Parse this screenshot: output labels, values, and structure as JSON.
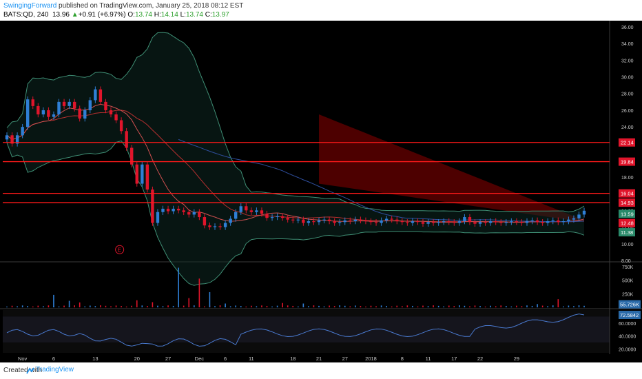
{
  "header": {
    "author": "SwingingForward",
    "published_text": " published on TradingView.com, January 25, 2018 08:12 EST",
    "symbol": "BATS:QD, 240",
    "last": "13.96",
    "change": "+0.91 (+6.97%)",
    "o_label": "O:",
    "o": "13.74",
    "h_label": "H:",
    "h": "14.14",
    "l_label": "L:",
    "l": "13.74",
    "c_label": "C:",
    "c": "13.97"
  },
  "footer": {
    "created": "Created with",
    "brand": "TradingView"
  },
  "colors": {
    "up": "#2f7fd6",
    "down": "#e0152b",
    "hline": "#ff1a1a",
    "bb": "#3f8f75",
    "ma_red": "#b83030",
    "ma_blue": "#2f4f9f",
    "rsi": "#4a7ad0"
  },
  "chart_data": [
    {
      "type": "candlestick",
      "price_axis": {
        "ticks": [
          36,
          34,
          32,
          30,
          28,
          26,
          24,
          22,
          20,
          18,
          16,
          14,
          12,
          10,
          8
        ],
        "ylim": [
          8,
          36.4
        ]
      },
      "x_labels": [
        "Nov",
        "6",
        "13",
        "20",
        "27",
        "Dec",
        "6",
        "11",
        "18",
        "21",
        "27",
        "2018",
        "8",
        "11",
        "17",
        "22",
        "29"
      ],
      "x_label_bars": [
        3,
        9,
        17,
        25,
        31,
        37,
        42,
        47,
        55,
        60,
        65,
        70,
        76,
        81,
        86,
        91,
        98
      ],
      "close": [
        23.0,
        22.0,
        23.0,
        24.0,
        27.3,
        26.5,
        25.5,
        26.0,
        25.2,
        25.5,
        27.0,
        26.5,
        27.0,
        26.2,
        25.0,
        26.0,
        27.2,
        28.5,
        27.0,
        26.0,
        25.5,
        24.8,
        23.5,
        21.5,
        19.5,
        17.2,
        19.5,
        16.5,
        12.5,
        13.8,
        14.2,
        13.9,
        14.2,
        14.0,
        13.8,
        13.5,
        13.8,
        13.2,
        12.2,
        12.0,
        12.1,
        12.0,
        12.5,
        13.0,
        13.8,
        14.5,
        14.0,
        13.8,
        14.0,
        13.6,
        13.1,
        13.2,
        13.3,
        13.1,
        12.9,
        12.8,
        12.9,
        12.5,
        12.7,
        12.6,
        12.8,
        12.9,
        12.7,
        12.5,
        12.6,
        12.8,
        12.7,
        12.9,
        12.8,
        12.7,
        12.6,
        12.5,
        12.8,
        13.0,
        12.9,
        12.7,
        12.6,
        12.5,
        12.7,
        12.6,
        12.4,
        12.6,
        12.5,
        12.6,
        12.7,
        12.6,
        12.5,
        12.7,
        13.2,
        13.05,
        13.5,
        13.96
      ],
      "horizontal_levels": [
        22.14,
        19.84,
        16.04,
        14.93
      ],
      "price_labels": [
        {
          "text": "22.14",
          "value": 22.14,
          "color": "#e0152b"
        },
        {
          "text": "19.84",
          "value": 19.84,
          "color": "#e0152b"
        },
        {
          "text": "16.04",
          "value": 16.04,
          "color": "#e0152b"
        },
        {
          "text": "14.93",
          "value": 14.93,
          "color": "#e0152b"
        },
        {
          "text": "13.59",
          "value": 13.59,
          "color": "#2a8a6a"
        },
        {
          "text": "12.48",
          "value": 12.48,
          "color": "#e0152b"
        },
        {
          "text": "11.38",
          "value": 11.38,
          "color": "#2a8a6a"
        }
      ],
      "annotation": {
        "text": "E",
        "bar": 23,
        "value": 9.3
      }
    },
    {
      "type": "bar",
      "name": "volume",
      "axis": {
        "ticks": [
          "750K",
          "500K",
          "250K"
        ],
        "tick_values": [
          750,
          500,
          250
        ],
        "ylim": [
          0,
          800
        ]
      },
      "spikes": [
        {
          "bar": 9,
          "value": 230
        },
        {
          "bar": 12,
          "value": 120
        },
        {
          "bar": 14,
          "value": 90
        },
        {
          "bar": 25,
          "value": 130
        },
        {
          "bar": 28,
          "value": 95
        },
        {
          "bar": 33,
          "value": 730
        },
        {
          "bar": 35,
          "value": 170
        },
        {
          "bar": 37,
          "value": 530
        },
        {
          "bar": 39,
          "value": 280
        },
        {
          "bar": 42,
          "value": 70
        },
        {
          "bar": 53,
          "value": 80
        },
        {
          "bar": 57,
          "value": 70
        },
        {
          "bar": 106,
          "value": 150
        },
        {
          "bar": 102,
          "value": 60
        }
      ],
      "last_label": "55.726K",
      "last_value": 55.7
    },
    {
      "type": "line",
      "name": "RSI",
      "axis": {
        "ticks": [
          "60.0000",
          "40.0000",
          "20.0000"
        ],
        "tick_values": [
          60,
          40,
          20
        ],
        "ylim": [
          14,
          80
        ]
      },
      "last_label": "72.5842",
      "last_value": 72.58
    }
  ]
}
